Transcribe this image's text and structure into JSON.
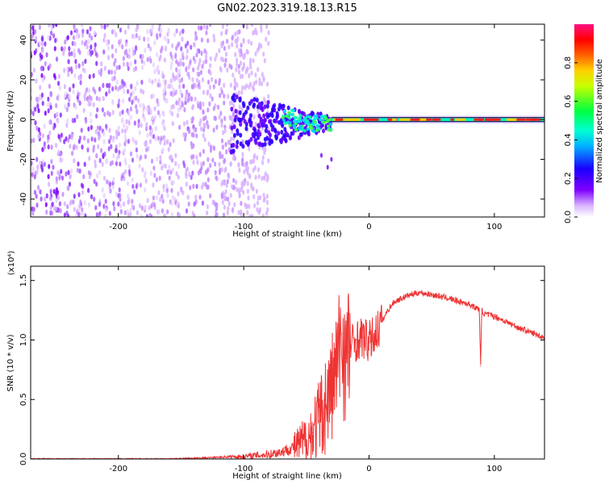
{
  "title": "GN02.2023.319.18.13.R15",
  "chart_data": [
    {
      "type": "heatmap",
      "xlabel": "Height of straight line (km)",
      "ylabel": "Frequency (Hz)",
      "xlim": [
        -270,
        140
      ],
      "ylim": [
        -49,
        48
      ],
      "xticks": [
        -200,
        -100,
        0,
        100
      ],
      "yticks": [
        -40,
        -20,
        0,
        20,
        40
      ],
      "colorbar": {
        "label": "Normalized spectral amplitude",
        "range": [
          0,
          1
        ],
        "ticks": [
          "0.0",
          "0.2",
          "0.4",
          "0.6",
          "0.8"
        ],
        "colormap": [
          "#ffffff",
          "#7f00ff",
          "#0000ff",
          "#00ffff",
          "#00ff00",
          "#ffff00",
          "#ff8000",
          "#ff0000",
          "#ff1493"
        ]
      },
      "features": {
        "scatter_region_x": [
          -270,
          -80
        ],
        "transition_x": [
          -100,
          -30
        ],
        "stable_line_frequency_hz": 0,
        "stable_line_x": [
          -30,
          140
        ]
      }
    },
    {
      "type": "line",
      "xlabel": "Height of straight line (km)",
      "ylabel": "SNR (10 * v/v)",
      "scale_label": "(x10⁴)",
      "xlim": [
        -270,
        140
      ],
      "ylim": [
        0,
        1.62
      ],
      "xticks": [
        -200,
        -100,
        0,
        100
      ],
      "yticks": [
        "0.0",
        "0.5",
        "1.0",
        "1.5"
      ],
      "series": [
        {
          "color": "#ee3333",
          "x": [
            -270,
            -240,
            -200,
            -160,
            -130,
            -110,
            -100,
            -80,
            -70,
            -60,
            -50,
            -45,
            -40,
            -35,
            -30,
            -25,
            -22,
            -20,
            -18,
            -15,
            -10,
            -5,
            0,
            5,
            10,
            15,
            20,
            30,
            40,
            50,
            60,
            70,
            80,
            85,
            88,
            89,
            90,
            92,
            100,
            110,
            120,
            130,
            140
          ],
          "y": [
            0.0,
            0.0,
            0.0,
            0.0,
            0.01,
            0.02,
            0.02,
            0.04,
            0.06,
            0.1,
            0.15,
            0.22,
            0.32,
            0.45,
            0.6,
            0.8,
            1.05,
            0.9,
            0.85,
            0.95,
            1.0,
            1.02,
            0.98,
            1.05,
            1.15,
            1.25,
            1.32,
            1.37,
            1.4,
            1.38,
            1.36,
            1.33,
            1.3,
            1.27,
            1.26,
            0.78,
            1.25,
            1.22,
            1.2,
            1.15,
            1.1,
            1.06,
            1.02
          ]
        }
      ]
    }
  ]
}
